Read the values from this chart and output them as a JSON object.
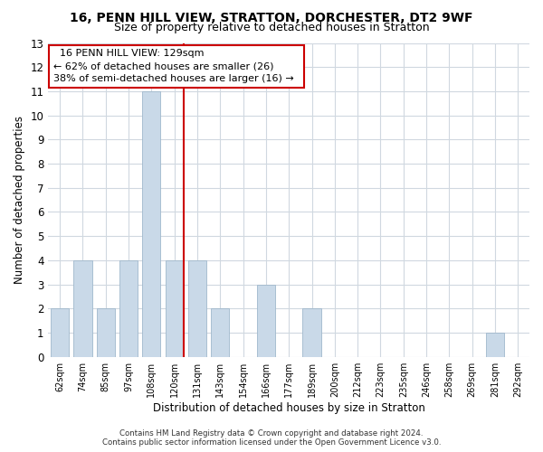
{
  "title": "16, PENN HILL VIEW, STRATTON, DORCHESTER, DT2 9WF",
  "subtitle": "Size of property relative to detached houses in Stratton",
  "xlabel": "Distribution of detached houses by size in Stratton",
  "ylabel": "Number of detached properties",
  "bar_labels": [
    "62sqm",
    "74sqm",
    "85sqm",
    "97sqm",
    "108sqm",
    "120sqm",
    "131sqm",
    "143sqm",
    "154sqm",
    "166sqm",
    "177sqm",
    "189sqm",
    "200sqm",
    "212sqm",
    "223sqm",
    "235sqm",
    "246sqm",
    "258sqm",
    "269sqm",
    "281sqm",
    "292sqm"
  ],
  "bar_values": [
    2,
    4,
    2,
    4,
    11,
    4,
    4,
    2,
    0,
    3,
    0,
    2,
    0,
    0,
    0,
    0,
    0,
    0,
    0,
    1,
    0
  ],
  "bar_color": "#c9d9e8",
  "bar_edge_color": "#a0b8cc",
  "vline_index": 5,
  "vline_color": "#cc0000",
  "annotation_title": "16 PENN HILL VIEW: 129sqm",
  "annotation_line1": "← 62% of detached houses are smaller (26)",
  "annotation_line2": "38% of semi-detached houses are larger (16) →",
  "annotation_box_color": "#ffffff",
  "annotation_border_color": "#cc0000",
  "ylim": [
    0,
    13
  ],
  "yticks": [
    0,
    1,
    2,
    3,
    4,
    5,
    6,
    7,
    8,
    9,
    10,
    11,
    12,
    13
  ],
  "footnote1": "Contains HM Land Registry data © Crown copyright and database right 2024.",
  "footnote2": "Contains public sector information licensed under the Open Government Licence v3.0.",
  "bg_color": "#ffffff",
  "grid_color": "#d0d8e0",
  "title_fontsize": 10,
  "subtitle_fontsize": 9
}
